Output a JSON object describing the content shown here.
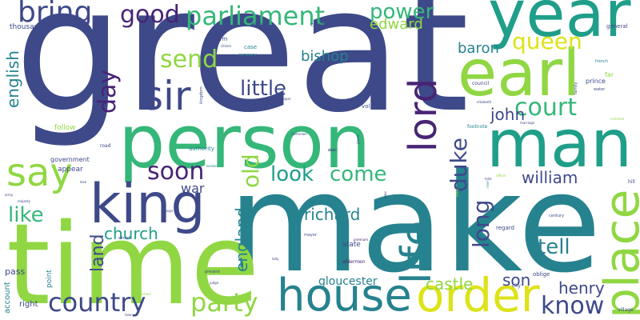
{
  "palette": {
    "indigo": "#3e4989",
    "purple": "#482475",
    "teal": "#26828e",
    "green": "#35b779",
    "lime": "#90d743",
    "yellow": "#dde318",
    "cyan": "#1f9e89"
  },
  "words": [
    {
      "text": "great",
      "color": "#3e4989"
    },
    {
      "text": "make",
      "color": "#26828e"
    },
    {
      "text": "time",
      "color": "#90d743"
    },
    {
      "text": "person",
      "color": "#35b779"
    },
    {
      "text": "man",
      "color": "#1f9e89"
    },
    {
      "text": "year",
      "color": "#1f9e89"
    },
    {
      "text": "earl",
      "color": "#90d743"
    },
    {
      "text": "house",
      "color": "#26828e"
    },
    {
      "text": "order",
      "color": "#dde318"
    },
    {
      "text": "king",
      "color": "#3e4989"
    },
    {
      "text": "place",
      "color": "#90d743"
    },
    {
      "text": "life",
      "color": "#26828e"
    },
    {
      "text": "lord",
      "color": "#482475"
    },
    {
      "text": "sir",
      "color": "#3e4989"
    },
    {
      "text": "say",
      "color": "#90d743"
    },
    {
      "text": "parliament",
      "color": "#35b779"
    },
    {
      "text": "good",
      "color": "#482475"
    },
    {
      "text": "bring",
      "color": "#3e4989"
    },
    {
      "text": "power",
      "color": "#35b779"
    },
    {
      "text": "queen",
      "color": "#dde318"
    },
    {
      "text": "country",
      "color": "#3e4989"
    },
    {
      "text": "party",
      "color": "#90d743"
    },
    {
      "text": "know",
      "color": "#3e4989"
    },
    {
      "text": "court",
      "color": "#35b779"
    },
    {
      "text": "soon",
      "color": "#482475"
    },
    {
      "text": "come",
      "color": "#35b779"
    },
    {
      "text": "look",
      "color": "#1f9e89"
    },
    {
      "text": "day",
      "color": "#90d743"
    },
    {
      "text": "send",
      "color": "#482475"
    },
    {
      "text": "little",
      "color": "#3e4989"
    },
    {
      "text": "duke",
      "color": "#3e4989"
    },
    {
      "text": "long",
      "color": "#3e4989"
    },
    {
      "text": "tell",
      "color": "#26828e"
    },
    {
      "text": "like",
      "color": "#35b779"
    },
    {
      "text": "church",
      "color": "#1f9e89"
    },
    {
      "text": "richard",
      "color": "#26828e"
    },
    {
      "text": "william",
      "color": "#3e4989"
    },
    {
      "text": "castle",
      "color": "#90d743"
    },
    {
      "text": "henry",
      "color": "#3e4989"
    },
    {
      "text": "son",
      "color": "#3e4989"
    },
    {
      "text": "john",
      "color": "#3e4989"
    },
    {
      "text": "edward",
      "color": "#90d743"
    },
    {
      "text": "bishop",
      "color": "#26828e"
    },
    {
      "text": "baron",
      "color": "#26828e"
    },
    {
      "text": "english",
      "color": "#26828e"
    },
    {
      "text": "england",
      "color": "#26828e"
    },
    {
      "text": "old",
      "color": "#90d743"
    },
    {
      "text": "war",
      "color": "#3e4989"
    },
    {
      "text": "land",
      "color": "#3e4989"
    },
    {
      "text": "gloucester",
      "color": "#26828e"
    },
    {
      "text": "thousand",
      "color": "#3e4989"
    },
    {
      "text": "pass",
      "color": "#3e4989"
    },
    {
      "text": "right",
      "color": "#3e4989"
    },
    {
      "text": "account",
      "color": "#26828e"
    },
    {
      "text": "point",
      "color": "#26828e"
    },
    {
      "text": "appear",
      "color": "#3e4989"
    },
    {
      "text": "government",
      "color": "#3e4989"
    },
    {
      "text": "follow",
      "color": "#90d743"
    },
    {
      "text": "authority",
      "color": "#26828e"
    },
    {
      "text": "form",
      "color": "#3e4989"
    },
    {
      "text": "case",
      "color": "#26828e"
    },
    {
      "text": "company",
      "color": "#26828e"
    },
    {
      "text": "course",
      "color": "#3e4989"
    },
    {
      "text": "general",
      "color": "#3e4989"
    },
    {
      "text": "prince",
      "color": "#3e4989"
    },
    {
      "text": "council",
      "color": "#3e4989"
    },
    {
      "text": "vol",
      "color": "#3e4989"
    },
    {
      "text": "state",
      "color": "#3e4989"
    },
    {
      "text": "aldermen",
      "color": "#482475"
    },
    {
      "text": "footnote",
      "color": "#26828e"
    },
    {
      "text": "regard",
      "color": "#3e4989"
    },
    {
      "text": "oblige",
      "color": "#3e4989"
    },
    {
      "text": "century",
      "color": "#3e4989"
    },
    {
      "text": "village",
      "color": "#3e4989"
    },
    {
      "text": "hill",
      "color": "#3e4989"
    },
    {
      "text": "far",
      "color": "#90d743"
    },
    {
      "text": "build",
      "color": "#3e4989"
    },
    {
      "text": "road",
      "color": "#3e4989"
    },
    {
      "text": "present",
      "color": "#3e4989"
    },
    {
      "text": "mayor",
      "color": "#3e4989"
    },
    {
      "text": "whilst",
      "color": "#3e4989"
    },
    {
      "text": "city",
      "color": "#3e4989"
    },
    {
      "text": "family",
      "color": "#3e4989"
    },
    {
      "text": "water",
      "color": "#3e4989"
    },
    {
      "text": "french",
      "color": "#26828e"
    },
    {
      "text": "town",
      "color": "#3e4989"
    },
    {
      "text": "common",
      "color": "#90d743"
    },
    {
      "text": "citizen",
      "color": "#3e4989"
    },
    {
      "text": "kingdom",
      "color": "#3e4989"
    },
    {
      "text": "paper",
      "color": "#3e4989"
    },
    {
      "text": "clarendon",
      "color": "#3e4989"
    },
    {
      "text": "premium",
      "color": "#482475"
    },
    {
      "text": "lady",
      "color": "#3e4989"
    },
    {
      "text": "dick",
      "color": "#3e4989"
    },
    {
      "text": "majesty",
      "color": "#3e4989"
    },
    {
      "text": "army",
      "color": "#3e4989"
    },
    {
      "text": "lose",
      "color": "#3e4989"
    },
    {
      "text": "elizabeth",
      "color": "#3e4989"
    },
    {
      "text": "marriage",
      "color": "#3e4989"
    },
    {
      "text": "paul",
      "color": "#3e4989"
    },
    {
      "text": "james",
      "color": "#3e4989"
    },
    {
      "text": "london",
      "color": "#26828e"
    },
    {
      "text": "letter",
      "color": "#90d743"
    },
    {
      "text": "victoria",
      "color": "#3e4989"
    },
    {
      "text": "reign",
      "color": "#3e4989"
    },
    {
      "text": "death",
      "color": "#3e4989"
    },
    {
      "text": "officer",
      "color": "#90d743"
    },
    {
      "text": "river",
      "color": "#26828e"
    },
    {
      "text": "mile",
      "color": "#3e4989"
    },
    {
      "text": "judge",
      "color": "#3e4989"
    },
    {
      "text": "school",
      "color": "#90d743"
    }
  ]
}
